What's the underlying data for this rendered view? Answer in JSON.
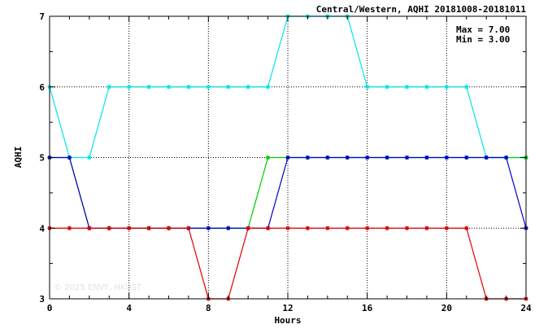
{
  "chart_data": {
    "type": "line",
    "title": "Central/Western, AQHI 20181008-20181011",
    "xlabel": "Hours",
    "ylabel": "AQHI",
    "xlim": [
      0,
      24
    ],
    "ylim": [
      3,
      7
    ],
    "xticks": [
      0,
      4,
      8,
      12,
      16,
      20,
      24
    ],
    "yticks": [
      3,
      4,
      5,
      6,
      7
    ],
    "grid": true,
    "stats": {
      "max_text": "Max = 7.00",
      "min_text": "Min = 3.00"
    },
    "watermark": "© 2025  ENVF, HKUST",
    "x": [
      0,
      1,
      2,
      3,
      4,
      5,
      6,
      7,
      8,
      9,
      10,
      11,
      12,
      13,
      14,
      15,
      16,
      17,
      18,
      19,
      20,
      21,
      22,
      23,
      24
    ],
    "series": [
      {
        "color": "#00e5e5",
        "values": [
          6,
          5,
          5,
          6,
          6,
          6,
          6,
          6,
          6,
          6,
          6,
          6,
          7,
          7,
          7,
          7,
          6,
          6,
          6,
          6,
          6,
          6,
          5,
          5,
          5
        ]
      },
      {
        "color": "#00cc00",
        "values": [
          5,
          5,
          4,
          4,
          4,
          4,
          4,
          4,
          4,
          4,
          4,
          5,
          5,
          5,
          5,
          5,
          5,
          5,
          5,
          5,
          5,
          5,
          5,
          5,
          5
        ]
      },
      {
        "color": "#0000cc",
        "values": [
          5,
          5,
          4,
          4,
          4,
          4,
          4,
          4,
          4,
          4,
          4,
          4,
          5,
          5,
          5,
          5,
          5,
          5,
          5,
          5,
          5,
          5,
          5,
          5,
          4
        ]
      },
      {
        "color": "#dd0000",
        "values": [
          4,
          4,
          4,
          4,
          4,
          4,
          4,
          4,
          3,
          3,
          4,
          4,
          4,
          4,
          4,
          4,
          4,
          4,
          4,
          4,
          4,
          4,
          3,
          3,
          3
        ]
      }
    ]
  }
}
